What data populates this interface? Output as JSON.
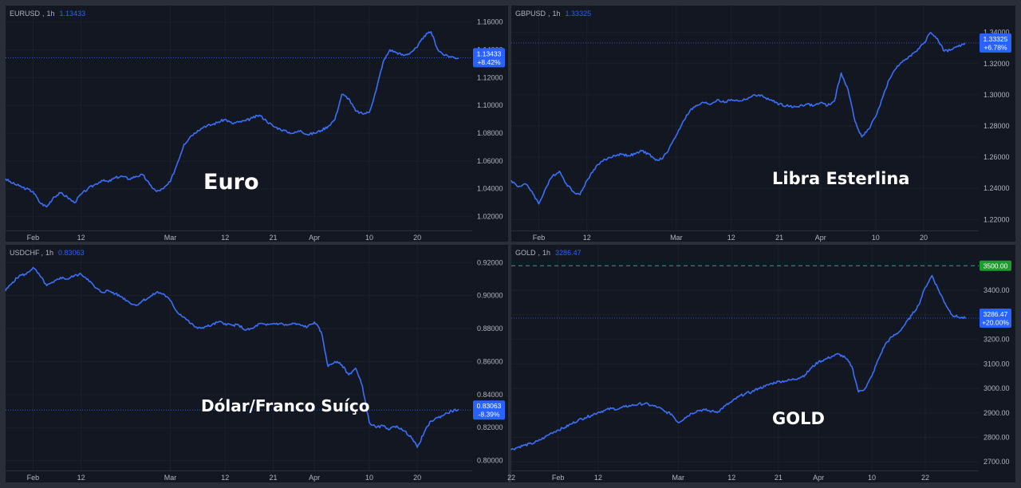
{
  "colors": {
    "line": "#2962ff",
    "line_stroke": "#3a6ff7",
    "price_line": "#2962ff",
    "badge": "#2962ff",
    "resistance": "#26a69a",
    "resistance_badge": "#1e9c2e"
  },
  "chart_data": [
    {
      "type": "line",
      "symbol": "EURUSD",
      "interval": "1h",
      "last": "1.13433",
      "last_value": 1.13433,
      "change": "+8.42%",
      "label": "Euro",
      "ylim": [
        1.01,
        1.165
      ],
      "yticks": [
        "1.16000",
        "1.14000",
        "1.12000",
        "1.10000",
        "1.08000",
        "1.06000",
        "1.04000",
        "1.02000"
      ],
      "ytick_values": [
        1.16,
        1.14,
        1.12,
        1.1,
        1.08,
        1.06,
        1.04,
        1.02
      ],
      "xticks": [
        "Feb",
        "12",
        "Mar",
        "12",
        "21",
        "Apr",
        "10",
        "20"
      ],
      "xtick_pos": [
        4,
        11,
        24,
        32,
        39,
        45,
        53,
        60
      ],
      "x_domain": [
        0,
        68
      ],
      "x": [
        0,
        1,
        2,
        3,
        4,
        5,
        6,
        7,
        8,
        9,
        10,
        11,
        12,
        13,
        14,
        15,
        16,
        17,
        18,
        19,
        20,
        21,
        22,
        23,
        24,
        25,
        26,
        27,
        28,
        29,
        30,
        31,
        32,
        33,
        34,
        35,
        36,
        37,
        38,
        39,
        40,
        41,
        42,
        43,
        44,
        45,
        46,
        47,
        48,
        49,
        50,
        51,
        52,
        53,
        54,
        55,
        56,
        57,
        58,
        59,
        60,
        61,
        62,
        63,
        64,
        65,
        66
      ],
      "values": [
        1.047,
        1.044,
        1.042,
        1.04,
        1.038,
        1.03,
        1.027,
        1.034,
        1.037,
        1.034,
        1.03,
        1.036,
        1.04,
        1.043,
        1.046,
        1.045,
        1.048,
        1.049,
        1.047,
        1.049,
        1.05,
        1.043,
        1.038,
        1.04,
        1.045,
        1.058,
        1.072,
        1.078,
        1.082,
        1.085,
        1.086,
        1.088,
        1.09,
        1.087,
        1.088,
        1.089,
        1.091,
        1.093,
        1.089,
        1.085,
        1.083,
        1.081,
        1.08,
        1.082,
        1.079,
        1.08,
        1.082,
        1.085,
        1.09,
        1.108,
        1.105,
        1.096,
        1.094,
        1.095,
        1.111,
        1.131,
        1.14,
        1.138,
        1.136,
        1.138,
        1.142,
        1.15,
        1.153,
        1.14,
        1.136,
        1.135,
        1.134
      ]
    },
    {
      "type": "line",
      "symbol": "GBPUSD",
      "interval": "1h",
      "last": "1.33325",
      "last_value": 1.33325,
      "change": "+6.78%",
      "label": "Libra Esterlina",
      "ylim": [
        1.213,
        1.347
      ],
      "yticks": [
        "1.34000",
        "1.32000",
        "1.30000",
        "1.28000",
        "1.26000",
        "1.24000",
        "1.22000"
      ],
      "ytick_values": [
        1.34,
        1.32,
        1.3,
        1.28,
        1.26,
        1.24,
        1.22
      ],
      "xticks": [
        "Feb",
        "12",
        "Mar",
        "12",
        "21",
        "Apr",
        "10",
        "20"
      ],
      "xtick_pos": [
        4,
        11,
        24,
        32,
        39,
        45,
        53,
        60
      ],
      "x_domain": [
        0,
        68
      ],
      "x": [
        0,
        1,
        2,
        3,
        4,
        5,
        6,
        7,
        8,
        9,
        10,
        11,
        12,
        13,
        14,
        15,
        16,
        17,
        18,
        19,
        20,
        21,
        22,
        23,
        24,
        25,
        26,
        27,
        28,
        29,
        30,
        31,
        32,
        33,
        34,
        35,
        36,
        37,
        38,
        39,
        40,
        41,
        42,
        43,
        44,
        45,
        46,
        47,
        48,
        49,
        50,
        51,
        52,
        53,
        54,
        55,
        56,
        57,
        58,
        59,
        60,
        61,
        62,
        63,
        64,
        65,
        66
      ],
      "values": [
        1.245,
        1.241,
        1.243,
        1.238,
        1.23,
        1.24,
        1.248,
        1.251,
        1.243,
        1.238,
        1.236,
        1.245,
        1.252,
        1.257,
        1.259,
        1.261,
        1.262,
        1.261,
        1.262,
        1.264,
        1.262,
        1.258,
        1.259,
        1.266,
        1.274,
        1.283,
        1.29,
        1.293,
        1.295,
        1.294,
        1.297,
        1.295,
        1.297,
        1.296,
        1.297,
        1.299,
        1.3,
        1.298,
        1.296,
        1.294,
        1.293,
        1.292,
        1.293,
        1.294,
        1.293,
        1.295,
        1.293,
        1.296,
        1.314,
        1.303,
        1.283,
        1.273,
        1.278,
        1.286,
        1.298,
        1.31,
        1.317,
        1.322,
        1.325,
        1.328,
        1.333,
        1.34,
        1.336,
        1.328,
        1.329,
        1.331,
        1.333
      ]
    },
    {
      "type": "line",
      "symbol": "USDCHF",
      "interval": "1h",
      "last": "0.83063",
      "last_value": 0.83063,
      "change": "-8.39%",
      "label": "Dólar/Franco Suíço",
      "ylim": [
        0.794,
        0.924
      ],
      "yticks": [
        "0.92000",
        "0.90000",
        "0.88000",
        "0.86000",
        "0.84000",
        "0.82000",
        "0.80000"
      ],
      "ytick_values": [
        0.92,
        0.9,
        0.88,
        0.86,
        0.84,
        0.82,
        0.8
      ],
      "xticks": [
        "Feb",
        "12",
        "Mar",
        "12",
        "21",
        "Apr",
        "10",
        "20"
      ],
      "xtick_pos": [
        4,
        11,
        24,
        32,
        39,
        45,
        53,
        60
      ],
      "x_domain": [
        0,
        68
      ],
      "x": [
        0,
        1,
        2,
        3,
        4,
        5,
        6,
        7,
        8,
        9,
        10,
        11,
        12,
        13,
        14,
        15,
        16,
        17,
        18,
        19,
        20,
        21,
        22,
        23,
        24,
        25,
        26,
        27,
        28,
        29,
        30,
        31,
        32,
        33,
        34,
        35,
        36,
        37,
        38,
        39,
        40,
        41,
        42,
        43,
        44,
        45,
        46,
        47,
        48,
        49,
        50,
        51,
        52,
        53,
        54,
        55,
        56,
        57,
        58,
        59,
        60,
        61,
        62,
        63,
        64,
        65,
        66
      ],
      "values": [
        0.903,
        0.908,
        0.912,
        0.913,
        0.917,
        0.912,
        0.906,
        0.908,
        0.911,
        0.91,
        0.912,
        0.913,
        0.91,
        0.905,
        0.902,
        0.903,
        0.901,
        0.899,
        0.896,
        0.894,
        0.897,
        0.899,
        0.902,
        0.901,
        0.897,
        0.89,
        0.887,
        0.883,
        0.88,
        0.881,
        0.882,
        0.884,
        0.883,
        0.882,
        0.882,
        0.879,
        0.88,
        0.883,
        0.882,
        0.883,
        0.883,
        0.882,
        0.883,
        0.882,
        0.881,
        0.884,
        0.878,
        0.857,
        0.86,
        0.858,
        0.852,
        0.856,
        0.845,
        0.823,
        0.82,
        0.821,
        0.819,
        0.821,
        0.818,
        0.815,
        0.808,
        0.817,
        0.824,
        0.826,
        0.828,
        0.83,
        0.831
      ]
    },
    {
      "type": "line",
      "symbol": "GOLD",
      "interval": "1h",
      "last": "3286.47",
      "last_value": 3286.47,
      "change": "+20.00%",
      "label": "GOLD",
      "resistance": "3500.00",
      "resistance_value": 3500,
      "ylim": [
        2665,
        3540
      ],
      "yticks": [
        "3400.00",
        "3300.00",
        "3200.00",
        "3100.00",
        "3000.00",
        "2900.00",
        "2800.00",
        "2700.00"
      ],
      "ytick_values": [
        3400,
        3300,
        3200,
        3100,
        3000,
        2900,
        2800,
        2700
      ],
      "xticks": [
        "22",
        "Feb",
        "12",
        "Mar",
        "12",
        "21",
        "Apr",
        "10",
        "22"
      ],
      "xtick_pos": [
        0,
        7,
        13,
        25,
        33,
        40,
        46,
        54,
        62
      ],
      "x_domain": [
        0,
        70
      ],
      "x": [
        0,
        1,
        2,
        3,
        4,
        5,
        6,
        7,
        8,
        9,
        10,
        11,
        12,
        13,
        14,
        15,
        16,
        17,
        18,
        19,
        20,
        21,
        22,
        23,
        24,
        25,
        26,
        27,
        28,
        29,
        30,
        31,
        32,
        33,
        34,
        35,
        36,
        37,
        38,
        39,
        40,
        41,
        42,
        43,
        44,
        45,
        46,
        47,
        48,
        49,
        50,
        51,
        52,
        53,
        54,
        55,
        56,
        57,
        58,
        59,
        60,
        61,
        62,
        63,
        64,
        65,
        66,
        67,
        68
      ],
      "values": [
        2750,
        2760,
        2768,
        2774,
        2785,
        2800,
        2818,
        2830,
        2840,
        2855,
        2870,
        2880,
        2890,
        2902,
        2910,
        2918,
        2915,
        2925,
        2930,
        2935,
        2938,
        2930,
        2923,
        2905,
        2895,
        2860,
        2880,
        2898,
        2910,
        2912,
        2906,
        2905,
        2928,
        2945,
        2965,
        2978,
        2985,
        3000,
        3008,
        3020,
        3028,
        3030,
        3035,
        3042,
        3055,
        3085,
        3108,
        3118,
        3130,
        3140,
        3125,
        3090,
        2985,
        3000,
        3050,
        3120,
        3180,
        3210,
        3228,
        3262,
        3300,
        3340,
        3412,
        3460,
        3400,
        3345,
        3300,
        3290,
        3286
      ]
    }
  ]
}
